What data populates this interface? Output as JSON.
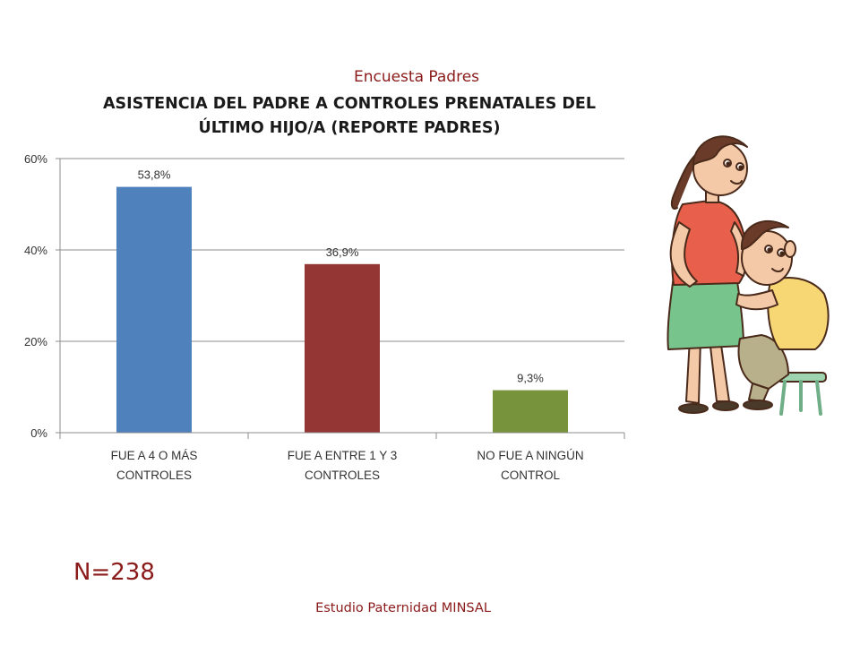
{
  "header": {
    "survey_label": "Encuesta Padres"
  },
  "chart_data": {
    "type": "bar",
    "title_lines": [
      "ASISTENCIA DEL PADRE A CONTROLES PRENATALES DEL",
      "ÚLTIMO HIJO/A (REPORTE PADRES)"
    ],
    "categories": [
      [
        "FUE A 4 O MÁS",
        "CONTROLES"
      ],
      [
        "FUE A ENTRE 1 Y 3",
        "CONTROLES"
      ],
      [
        "NO FUE A NINGÚN",
        "CONTROL"
      ]
    ],
    "values": [
      53.8,
      36.9,
      9.3
    ],
    "data_labels": [
      "53,8%",
      "36,9%",
      "9,3%"
    ],
    "colors": [
      "#4f81bd",
      "#943634",
      "#77933c"
    ],
    "ylim": [
      0,
      60
    ],
    "yticks": [
      0,
      20,
      40,
      60
    ],
    "ytick_labels": [
      "0%",
      "20%",
      "40%",
      "60%"
    ],
    "grid": true,
    "legend": "none"
  },
  "footer": {
    "n_label": "N=238",
    "source": "Estudio Paternidad MINSAL"
  },
  "illustration": {
    "name": "pregnant-woman-and-man-illustration",
    "colors": {
      "blouse": "#e8604c",
      "skirt": "#77c48d",
      "shirt": "#f7d774",
      "pants": "#b7b08a",
      "stool": "#9fd4b0",
      "hair": "#6b3b2a",
      "skin": "#f3c9a8"
    }
  }
}
